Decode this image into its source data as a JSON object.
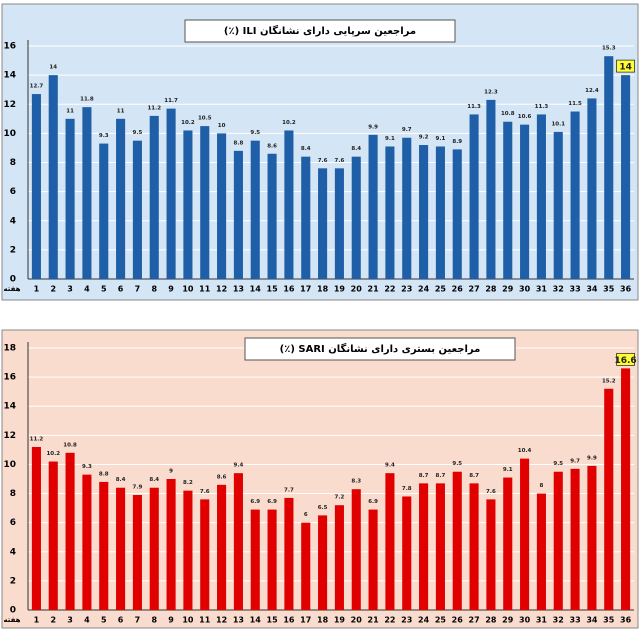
{
  "chart_data": [
    {
      "type": "bar",
      "title": "مراجعین سرپایی دارای نشانگان ILI (٪)",
      "xlabel": "هفته",
      "categories": [
        "1",
        "2",
        "3",
        "4",
        "5",
        "6",
        "7",
        "8",
        "9",
        "10",
        "11",
        "12",
        "13",
        "14",
        "15",
        "16",
        "17",
        "18",
        "19",
        "20",
        "21",
        "22",
        "23",
        "24",
        "25",
        "26",
        "27",
        "28",
        "29",
        "30",
        "31",
        "32",
        "33",
        "34",
        "35",
        "36"
      ],
      "values": [
        12.7,
        14,
        11,
        11.8,
        9.3,
        11,
        9.5,
        11.2,
        11.7,
        10.2,
        10.5,
        10,
        8.8,
        9.5,
        8.6,
        10.2,
        8.4,
        7.6,
        7.6,
        8.4,
        9.9,
        9.1,
        9.7,
        9.2,
        9.1,
        8.9,
        11.3,
        12.3,
        10.8,
        10.6,
        11.3,
        10.1,
        11.5,
        12.4,
        15.3,
        14
      ],
      "color": "#1f5fa8",
      "background": "#d4e5f5",
      "ylim": [
        0,
        16
      ],
      "yticks": [
        0,
        2,
        4,
        6,
        8,
        10,
        12,
        14,
        16
      ],
      "grid": true
    },
    {
      "type": "bar",
      "title": "مراجعین بستری دارای نشانگان SARI (٪)",
      "xlabel": "هفته",
      "categories": [
        "1",
        "2",
        "3",
        "4",
        "5",
        "6",
        "7",
        "8",
        "9",
        "10",
        "11",
        "12",
        "13",
        "14",
        "15",
        "16",
        "17",
        "18",
        "19",
        "20",
        "21",
        "22",
        "23",
        "24",
        "25",
        "26",
        "27",
        "28",
        "29",
        "30",
        "31",
        "32",
        "33",
        "34",
        "35",
        "36"
      ],
      "values": [
        11.2,
        10.2,
        10.8,
        9.3,
        8.8,
        8.4,
        7.9,
        8.4,
        9,
        8.2,
        7.6,
        8.6,
        9.4,
        6.9,
        6.9,
        7.7,
        6,
        6.5,
        7.2,
        8.3,
        6.9,
        9.4,
        7.8,
        8.7,
        8.7,
        9.5,
        8.7,
        7.6,
        9.1,
        10.4,
        8,
        9.5,
        9.7,
        9.9,
        15.2,
        16.6
      ],
      "color": "#e00000",
      "background": "#fadccf",
      "ylim": [
        0,
        18
      ],
      "yticks": [
        0,
        2,
        4,
        6,
        8,
        10,
        12,
        14,
        16,
        18
      ],
      "grid": true
    }
  ]
}
